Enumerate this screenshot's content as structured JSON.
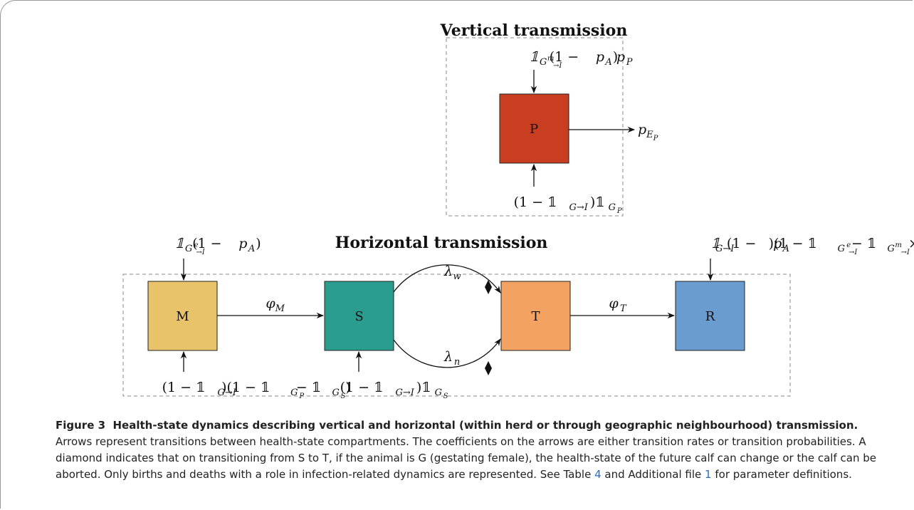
{
  "vertical": {
    "title": "Vertical transmission",
    "node": "P",
    "top": [
      [
        "𝟙",
        "n"
      ],
      [
        "G",
        "sub"
      ],
      [
        "m",
        "subsup"
      ],
      [
        "→I",
        "subsub"
      ],
      [
        "(1 − ",
        "r"
      ],
      [
        "p",
        "n"
      ],
      [
        "A",
        "sub"
      ],
      [
        ")",
        "r"
      ],
      [
        "p",
        "n"
      ],
      [
        "P",
        "sub"
      ]
    ],
    "right": [
      [
        "p",
        "n"
      ],
      [
        "E",
        "sub"
      ],
      [
        "P",
        "subsub"
      ]
    ],
    "bottom": [
      [
        "(1 − 𝟙",
        "r"
      ],
      [
        "G→I",
        "sub"
      ],
      [
        ")𝟙",
        "r"
      ],
      [
        "G",
        "sub"
      ],
      [
        "P",
        "subsub"
      ]
    ]
  },
  "horizontal": {
    "title": "Horizontal transmission",
    "nodes": [
      {
        "label": "M",
        "color": "#e8c36a"
      },
      {
        "label": "S",
        "color": "#2a9d8f"
      },
      {
        "label": "T",
        "color": "#f4a261"
      },
      {
        "label": "R",
        "color": "#6a9ccf"
      }
    ],
    "m_top": [
      [
        "𝟙",
        "n"
      ],
      [
        "G",
        "sub"
      ],
      [
        "e",
        "subsup"
      ],
      [
        "→I",
        "subsub"
      ],
      [
        "(1 − ",
        "r"
      ],
      [
        "p",
        "n"
      ],
      [
        "A",
        "sub"
      ],
      [
        ")",
        "r"
      ]
    ],
    "r_top": [
      [
        "𝟙",
        "n"
      ],
      [
        "G→I",
        "sub"
      ],
      [
        "(1 − ",
        "r"
      ],
      [
        "p",
        "n"
      ],
      [
        "A",
        "sub"
      ],
      [
        ")(1 − 𝟙",
        "r"
      ],
      [
        "G",
        "sub"
      ],
      [
        "e",
        "subsup"
      ],
      [
        "→I",
        "subsub"
      ],
      [
        " − 𝟙",
        "r"
      ],
      [
        "G",
        "sub"
      ],
      [
        "m",
        "subsup"
      ],
      [
        "→I",
        "subsub"
      ],
      [
        " × ",
        "r"
      ],
      [
        "p",
        "n"
      ],
      [
        "P",
        "sub"
      ],
      [
        ")",
        "r"
      ]
    ],
    "m_bottom": [
      [
        "(1 − 𝟙",
        "r"
      ],
      [
        "G→I",
        "sub"
      ],
      [
        ")(1 − 𝟙",
        "r"
      ],
      [
        "G",
        "sub"
      ],
      [
        "P",
        "subsub"
      ],
      [
        " − 𝟙",
        "r"
      ],
      [
        "G",
        "sub"
      ],
      [
        "S",
        "subsub"
      ],
      [
        ")",
        "r"
      ]
    ],
    "s_bottom": [
      [
        "(1 − 𝟙",
        "r"
      ],
      [
        "G→I",
        "sub"
      ],
      [
        ")𝟙",
        "r"
      ],
      [
        "G",
        "sub"
      ],
      [
        "S",
        "subsub"
      ]
    ],
    "phi_m": [
      [
        "φ",
        "n"
      ],
      [
        "M",
        "sub"
      ]
    ],
    "lambda_w": [
      [
        "λ",
        "n"
      ],
      [
        "w",
        "sub"
      ]
    ],
    "lambda_n": [
      [
        "λ",
        "n"
      ],
      [
        "n",
        "sub"
      ]
    ],
    "phi_t": [
      [
        "φ",
        "n"
      ],
      [
        "T",
        "sub"
      ]
    ]
  },
  "caption": {
    "label": "Figure 3",
    "title": "Health-state dynamics describing vertical and horizontal (within herd or through geographic neighbourhood) transmission.",
    "text_1": "Arrows represent transitions between health-state compartments. The coefficients on the arrows are either transition rates or transition probabilities. A diamond indicates that on transitioning from S to T, if the animal is G (gestating female), the health-state of the future calf can change or the calf can be aborted. Only births and deaths with a role in infection-related dynamics are represented. See Table ",
    "link_1": "4",
    "text_2": " and Additional file ",
    "link_2": "1",
    "text_3": " for parameter definitions."
  }
}
